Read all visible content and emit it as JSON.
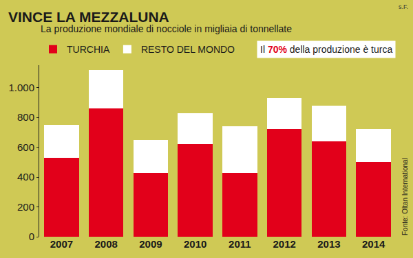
{
  "chart_data": {
    "type": "bar",
    "title": "VINCE LA MEZZALUNA",
    "subtitle": "La produzione mondiale di nocciole in migliaia di tonnellate",
    "categories": [
      "2007",
      "2008",
      "2009",
      "2010",
      "2011",
      "2012",
      "2013",
      "2014"
    ],
    "series": [
      {
        "name": "TURCHIA",
        "color": "#e2001a",
        "values": [
          530,
          860,
          430,
          620,
          430,
          720,
          640,
          500
        ]
      },
      {
        "name": "RESTO DEL MONDO",
        "color": "#ffffff",
        "values": [
          220,
          260,
          220,
          210,
          310,
          210,
          240,
          220
        ]
      }
    ],
    "stacked": true,
    "ylim": [
      0,
      1150
    ],
    "yticks": [
      0,
      200,
      400,
      600,
      800,
      {
        "value": 1000,
        "label": "1.000"
      }
    ],
    "grid": false,
    "legend": "top left",
    "annotations": [
      "Il 70% della produzione è turca"
    ],
    "source": "Fonte: Oltan International",
    "credit": "s.F."
  }
}
